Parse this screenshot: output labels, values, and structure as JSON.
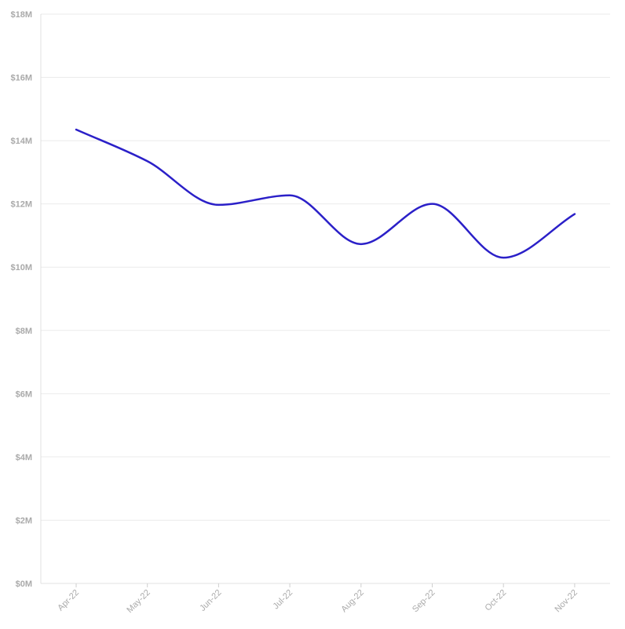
{
  "chart_data": {
    "type": "line",
    "title": "",
    "xlabel": "",
    "ylabel": "",
    "categories": [
      "Apr-22",
      "May-22",
      "Jun-22",
      "Jul-22",
      "Aug-22",
      "Sep-22",
      "Oct-22",
      "Nov-22"
    ],
    "series": [
      {
        "values": [
          14.35,
          13.35,
          11.97,
          12.27,
          10.73,
          12.0,
          10.3,
          11.68
        ],
        "color": "#2b20c8"
      }
    ],
    "y_ticks": [
      "$0M",
      "$2M",
      "$4M",
      "$6M",
      "$8M",
      "$10M",
      "$12M",
      "$14M",
      "$16M",
      "$18M"
    ],
    "ylim": [
      0,
      18
    ],
    "y_unit": "millions of dollars",
    "grid": true,
    "legend": "none",
    "smooth": true
  }
}
